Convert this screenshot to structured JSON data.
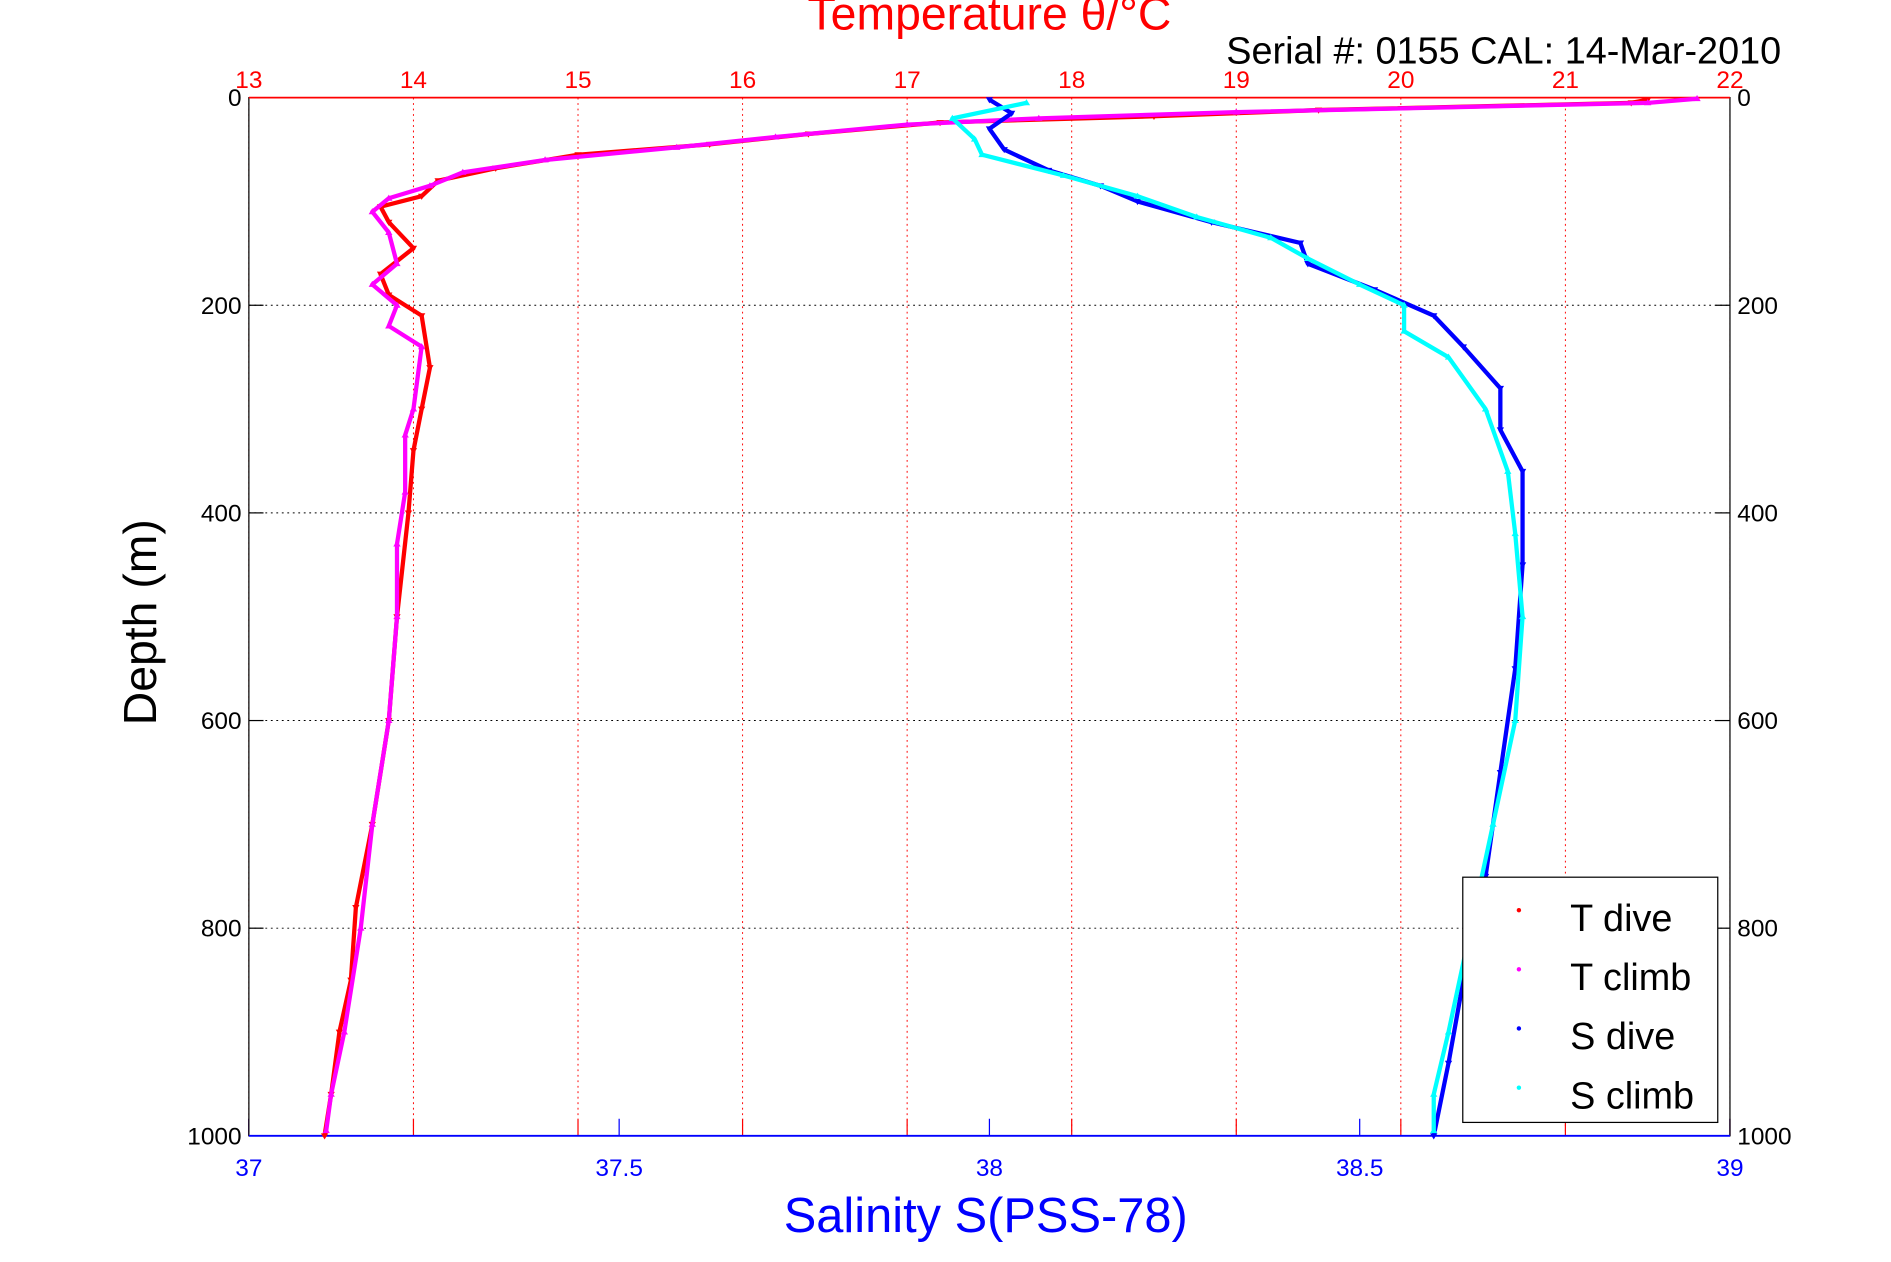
{
  "chart_data": {
    "type": "scatter",
    "title": "Temperature θ/°C",
    "subtitle": "Serial #: 0155  CAL: 14-Mar-2010",
    "xlabel": "Salinity S(PSS-78)",
    "ylabel": "Depth (m)",
    "x_top_label": "Temperature θ/°C",
    "temp_axis": {
      "range": [
        13,
        22
      ],
      "ticks": [
        "13",
        "14",
        "15",
        "16",
        "17",
        "18",
        "19",
        "20",
        "21",
        "22"
      ]
    },
    "sal_axis": {
      "range": [
        37,
        39
      ],
      "ticks": [
        "37",
        "37.5",
        "38",
        "38.5",
        "39"
      ]
    },
    "depth_axis": {
      "range": [
        0,
        1000
      ],
      "reversed": true,
      "ticks": [
        "0",
        "200",
        "400",
        "600",
        "800",
        "1000"
      ]
    },
    "grid": true,
    "legend_position": "bottom-right",
    "legend": [
      "T dive",
      "T climb",
      "S dive",
      "S climb"
    ],
    "colors": {
      "t_dive": "#ff0000",
      "t_climb": "#ff00ff",
      "s_dive": "#0000ff",
      "s_climb": "#00ffff",
      "title": "#ff0000",
      "sal_axis": "#0000ff"
    },
    "series": [
      {
        "name": "T dive",
        "axis": "temp",
        "color": "#ff0000",
        "points": [
          [
            2,
            21.5
          ],
          [
            5,
            21.4
          ],
          [
            12,
            19.5
          ],
          [
            18,
            18.5
          ],
          [
            24,
            17.2
          ],
          [
            35,
            16.4
          ],
          [
            45,
            15.8
          ],
          [
            55,
            15.0
          ],
          [
            68,
            14.5
          ],
          [
            80,
            14.15
          ],
          [
            95,
            14.05
          ],
          [
            105,
            13.8
          ],
          [
            120,
            13.85
          ],
          [
            145,
            14.0
          ],
          [
            170,
            13.8
          ],
          [
            190,
            13.85
          ],
          [
            210,
            14.05
          ],
          [
            260,
            14.1
          ],
          [
            300,
            14.05
          ],
          [
            340,
            14.0
          ],
          [
            400,
            13.97
          ],
          [
            500,
            13.9
          ],
          [
            600,
            13.85
          ],
          [
            700,
            13.75
          ],
          [
            780,
            13.65
          ],
          [
            850,
            13.62
          ],
          [
            900,
            13.55
          ],
          [
            960,
            13.5
          ],
          [
            1000,
            13.46
          ]
        ]
      },
      {
        "name": "T climb",
        "axis": "temp",
        "color": "#ff00ff",
        "points": [
          [
            1,
            21.8
          ],
          [
            5,
            21.5
          ],
          [
            14,
            19.0
          ],
          [
            20,
            17.8
          ],
          [
            26,
            17.0
          ],
          [
            38,
            16.2
          ],
          [
            48,
            15.6
          ],
          [
            60,
            14.8
          ],
          [
            72,
            14.3
          ],
          [
            85,
            14.1
          ],
          [
            97,
            13.85
          ],
          [
            110,
            13.75
          ],
          [
            130,
            13.85
          ],
          [
            160,
            13.9
          ],
          [
            180,
            13.75
          ],
          [
            200,
            13.9
          ],
          [
            220,
            13.85
          ],
          [
            240,
            14.05
          ],
          [
            300,
            14.0
          ],
          [
            325,
            13.95
          ],
          [
            380,
            13.95
          ],
          [
            430,
            13.9
          ],
          [
            500,
            13.9
          ],
          [
            600,
            13.85
          ],
          [
            700,
            13.75
          ],
          [
            800,
            13.68
          ],
          [
            900,
            13.58
          ],
          [
            960,
            13.5
          ],
          [
            995,
            13.47
          ]
        ]
      },
      {
        "name": "S dive",
        "axis": "sal",
        "color": "#0000ff",
        "points": [
          [
            2,
            38.0
          ],
          [
            15,
            38.03
          ],
          [
            30,
            38.0
          ],
          [
            50,
            38.02
          ],
          [
            70,
            38.08
          ],
          [
            85,
            38.15
          ],
          [
            100,
            38.2
          ],
          [
            120,
            38.3
          ],
          [
            140,
            38.42
          ],
          [
            160,
            38.43
          ],
          [
            185,
            38.52
          ],
          [
            210,
            38.6
          ],
          [
            240,
            38.64
          ],
          [
            280,
            38.69
          ],
          [
            320,
            38.69
          ],
          [
            360,
            38.72
          ],
          [
            450,
            38.72
          ],
          [
            550,
            38.71
          ],
          [
            650,
            38.69
          ],
          [
            750,
            38.67
          ],
          [
            850,
            38.64
          ],
          [
            930,
            38.62
          ],
          [
            1000,
            38.6
          ]
        ]
      },
      {
        "name": "S climb",
        "axis": "sal",
        "color": "#00ffff",
        "points": [
          [
            5,
            38.05
          ],
          [
            20,
            37.95
          ],
          [
            40,
            37.98
          ],
          [
            55,
            37.99
          ],
          [
            75,
            38.1
          ],
          [
            95,
            38.2
          ],
          [
            115,
            38.28
          ],
          [
            135,
            38.38
          ],
          [
            155,
            38.43
          ],
          [
            180,
            38.5
          ],
          [
            200,
            38.56
          ],
          [
            225,
            38.56
          ],
          [
            250,
            38.62
          ],
          [
            300,
            38.67
          ],
          [
            360,
            38.7
          ],
          [
            420,
            38.71
          ],
          [
            500,
            38.72
          ],
          [
            600,
            38.71
          ],
          [
            700,
            38.68
          ],
          [
            800,
            38.65
          ],
          [
            900,
            38.62
          ],
          [
            960,
            38.6
          ],
          [
            995,
            38.6
          ]
        ]
      }
    ]
  }
}
